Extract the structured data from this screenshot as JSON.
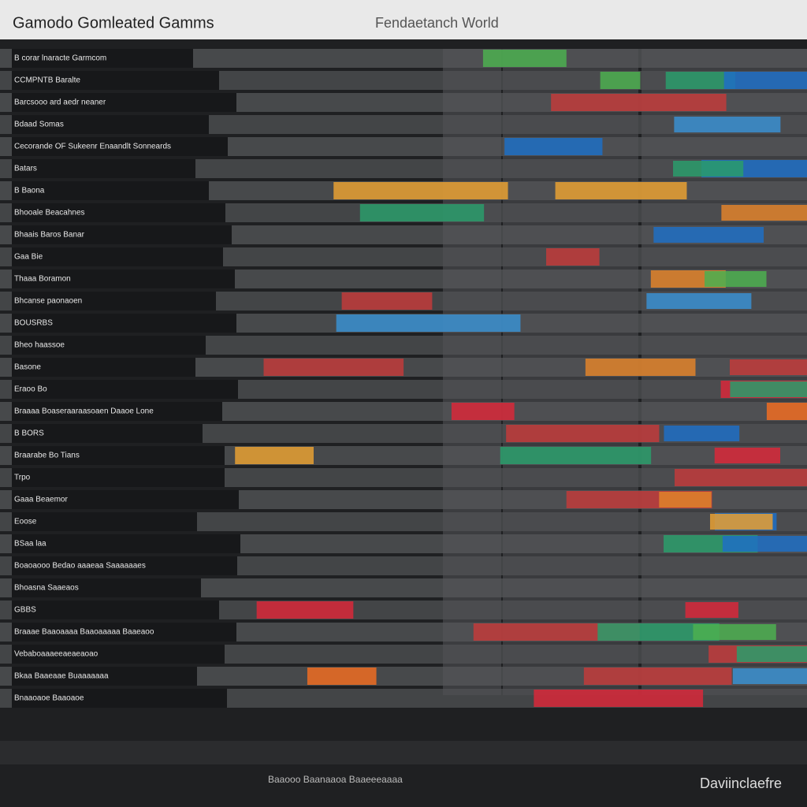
{
  "header": {
    "title": "Gamodo Gomleated Gamms",
    "subtitle": "Fendaetanch World"
  },
  "rows": [
    {
      "label": "B corar lnaracte Garmcom"
    },
    {
      "label": "CCMPNTB Baralte"
    },
    {
      "label": "Barcsooo ard aedr neaner"
    },
    {
      "label": "Bdaad Somas"
    },
    {
      "label": "Cecorande OF Sukeenr Enaandlt Sonneards"
    },
    {
      "label": "Batars"
    },
    {
      "label": "B Baona"
    },
    {
      "label": "Bhooale Beacahnes"
    },
    {
      "label": "Bhaais Baros Banar"
    },
    {
      "label": "Gaa Bie"
    },
    {
      "label": "Thaaa Boramon"
    },
    {
      "label": "Bhcanse paonaoen"
    },
    {
      "label": "BOUSRBS"
    },
    {
      "label": "Bheo haassoe"
    },
    {
      "label": "Basone"
    },
    {
      "label": "Eraoo Bo"
    },
    {
      "label": "Braaaa Boaseraaraasoaen Daaoe Lone"
    },
    {
      "label": "B BORS"
    },
    {
      "label": "Braarabe Bo Tians"
    },
    {
      "label": "Trpo"
    },
    {
      "label": "Gaaa Beaemor"
    },
    {
      "label": "Eoose"
    },
    {
      "label": "BSaa laa"
    },
    {
      "label": "Boaoaooo Bedao aaaeaa Saaaaaaes"
    },
    {
      "label": "Bhoasna Saaeaos"
    },
    {
      "label": "GBBS"
    },
    {
      "label": "Braaae Baaoaaaa Baaoaaaaa Baaeaoo"
    },
    {
      "label": "Vebaboaaaeeaeaeaoao"
    },
    {
      "label": "Bkaa Baaeaae Buaaaaaaa"
    },
    {
      "label": "Bnaaoaoe Baaoaoe"
    }
  ],
  "footer": {
    "caption": "Baaooo Baanaaoa Baaeeeaaaa",
    "brand": "Daviinclaefre"
  }
}
